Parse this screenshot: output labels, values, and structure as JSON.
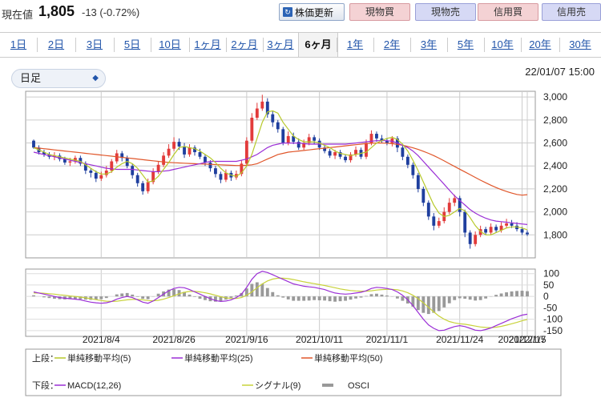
{
  "header": {
    "price_label": "現在値",
    "price_value": "1,805",
    "price_change": "-13 (-0.72%)",
    "update_button": "株価更新",
    "trade_buttons": [
      {
        "label": "現物買",
        "kind": "buy"
      },
      {
        "label": "現物売",
        "kind": "sell"
      },
      {
        "label": "信用買",
        "kind": "buy"
      },
      {
        "label": "信用売",
        "kind": "sell"
      }
    ]
  },
  "tabs": [
    "1日",
    "2日",
    "3日",
    "5日",
    "10日",
    "1ヶ月",
    "2ヶ月",
    "3ヶ月",
    "6ヶ月",
    "1年",
    "2年",
    "3年",
    "5年",
    "10年",
    "20年",
    "30年"
  ],
  "active_tab": "6ヶ月",
  "interval_select": "日足",
  "datetime": "22/01/07 15:00",
  "colors": {
    "up": "#e23b3b",
    "down": "#1f3f9e",
    "ma5": "#b7c92a",
    "ma25": "#9b2fd6",
    "ma50": "#e0562a",
    "macd": "#9b2fd6",
    "signal": "#c8d23a",
    "osci": "#999999"
  },
  "chart_data": [
    {
      "type": "candlestick",
      "y_ticks": [
        "3,000",
        "2,800",
        "2,600",
        "2,400",
        "2,200",
        "2,000",
        "1,800"
      ],
      "ylim": [
        1600,
        3050
      ],
      "x_tick_labels": [
        "2021/8/4",
        "2021/8/26",
        "2021/9/16",
        "2021/10/11",
        "2021/11/1",
        "2021/11/24",
        "2021/12/15",
        "2022/1/7"
      ],
      "candles": [
        [
          2620,
          2560,
          2630,
          2550
        ],
        [
          2560,
          2520,
          2580,
          2500
        ],
        [
          2520,
          2500,
          2540,
          2480
        ],
        [
          2500,
          2480,
          2520,
          2460
        ],
        [
          2480,
          2490,
          2520,
          2450
        ],
        [
          2490,
          2460,
          2510,
          2440
        ],
        [
          2460,
          2430,
          2480,
          2410
        ],
        [
          2430,
          2440,
          2470,
          2400
        ],
        [
          2440,
          2470,
          2490,
          2420
        ],
        [
          2470,
          2420,
          2490,
          2400
        ],
        [
          2420,
          2360,
          2440,
          2330
        ],
        [
          2360,
          2340,
          2380,
          2300
        ],
        [
          2340,
          2290,
          2360,
          2260
        ],
        [
          2290,
          2320,
          2350,
          2270
        ],
        [
          2320,
          2360,
          2400,
          2300
        ],
        [
          2360,
          2440,
          2460,
          2340
        ],
        [
          2440,
          2510,
          2540,
          2420
        ],
        [
          2510,
          2470,
          2530,
          2440
        ],
        [
          2470,
          2400,
          2490,
          2380
        ],
        [
          2400,
          2320,
          2420,
          2290
        ],
        [
          2320,
          2250,
          2340,
          2220
        ],
        [
          2250,
          2180,
          2270,
          2150
        ],
        [
          2180,
          2260,
          2290,
          2160
        ],
        [
          2260,
          2350,
          2380,
          2240
        ],
        [
          2350,
          2410,
          2440,
          2330
        ],
        [
          2410,
          2490,
          2520,
          2390
        ],
        [
          2490,
          2550,
          2590,
          2470
        ],
        [
          2550,
          2610,
          2650,
          2530
        ],
        [
          2610,
          2570,
          2640,
          2540
        ],
        [
          2570,
          2500,
          2600,
          2470
        ],
        [
          2500,
          2560,
          2590,
          2480
        ],
        [
          2560,
          2520,
          2580,
          2490
        ],
        [
          2520,
          2480,
          2550,
          2460
        ],
        [
          2480,
          2430,
          2500,
          2400
        ],
        [
          2430,
          2380,
          2450,
          2350
        ],
        [
          2380,
          2330,
          2400,
          2300
        ],
        [
          2330,
          2280,
          2350,
          2250
        ],
        [
          2280,
          2340,
          2370,
          2260
        ],
        [
          2340,
          2300,
          2360,
          2270
        ],
        [
          2300,
          2330,
          2360,
          2280
        ],
        [
          2330,
          2420,
          2450,
          2310
        ],
        [
          2420,
          2620,
          2650,
          2400
        ],
        [
          2620,
          2820,
          2860,
          2600
        ],
        [
          2820,
          2900,
          2950,
          2800
        ],
        [
          2900,
          2960,
          3020,
          2880
        ],
        [
          2960,
          2850,
          2990,
          2820
        ],
        [
          2850,
          2780,
          2880,
          2740
        ],
        [
          2780,
          2720,
          2800,
          2690
        ],
        [
          2720,
          2600,
          2740,
          2580
        ],
        [
          2600,
          2660,
          2700,
          2580
        ],
        [
          2660,
          2610,
          2690,
          2590
        ],
        [
          2610,
          2560,
          2640,
          2540
        ],
        [
          2560,
          2600,
          2630,
          2540
        ],
        [
          2600,
          2650,
          2680,
          2580
        ],
        [
          2650,
          2620,
          2670,
          2590
        ],
        [
          2620,
          2560,
          2640,
          2540
        ],
        [
          2560,
          2530,
          2580,
          2510
        ],
        [
          2530,
          2490,
          2550,
          2470
        ],
        [
          2490,
          2520,
          2540,
          2460
        ],
        [
          2520,
          2480,
          2540,
          2460
        ],
        [
          2480,
          2450,
          2500,
          2430
        ],
        [
          2450,
          2500,
          2520,
          2430
        ],
        [
          2500,
          2540,
          2570,
          2480
        ],
        [
          2540,
          2480,
          2560,
          2460
        ],
        [
          2480,
          2600,
          2630,
          2460
        ],
        [
          2600,
          2680,
          2710,
          2580
        ],
        [
          2680,
          2640,
          2700,
          2610
        ],
        [
          2640,
          2620,
          2670,
          2600
        ],
        [
          2620,
          2600,
          2640,
          2580
        ],
        [
          2600,
          2640,
          2660,
          2570
        ],
        [
          2640,
          2560,
          2660,
          2520
        ],
        [
          2560,
          2480,
          2580,
          2450
        ],
        [
          2480,
          2410,
          2500,
          2380
        ],
        [
          2410,
          2320,
          2430,
          2290
        ],
        [
          2320,
          2200,
          2340,
          2170
        ],
        [
          2200,
          2080,
          2220,
          2050
        ],
        [
          2080,
          1960,
          2100,
          1930
        ],
        [
          1960,
          1880,
          1990,
          1840
        ],
        [
          1880,
          1920,
          1950,
          1860
        ],
        [
          1920,
          2000,
          2040,
          1900
        ],
        [
          2000,
          2080,
          2120,
          1980
        ],
        [
          2080,
          2120,
          2150,
          2050
        ],
        [
          2120,
          2000,
          2140,
          1960
        ],
        [
          2000,
          1820,
          2020,
          1780
        ],
        [
          1820,
          1720,
          1840,
          1680
        ],
        [
          1720,
          1800,
          1830,
          1700
        ],
        [
          1800,
          1850,
          1880,
          1780
        ],
        [
          1850,
          1820,
          1870,
          1800
        ],
        [
          1820,
          1870,
          1900,
          1800
        ],
        [
          1870,
          1840,
          1890,
          1820
        ],
        [
          1840,
          1880,
          1910,
          1820
        ],
        [
          1880,
          1900,
          1940,
          1860
        ],
        [
          1900,
          1880,
          1930,
          1860
        ],
        [
          1880,
          1850,
          1910,
          1830
        ],
        [
          1850,
          1820,
          1870,
          1800
        ],
        [
          1820,
          1805,
          1840,
          1790
        ]
      ],
      "ma5": [
        2560,
        2540,
        2520,
        2500,
        2490,
        2480,
        2470,
        2460,
        2450,
        2440,
        2410,
        2380,
        2350,
        2330,
        2330,
        2350,
        2390,
        2420,
        2440,
        2420,
        2380,
        2320,
        2260,
        2270,
        2310,
        2370,
        2430,
        2500,
        2560,
        2570,
        2560,
        2550,
        2530,
        2500,
        2470,
        2430,
        2380,
        2340,
        2320,
        2310,
        2340,
        2400,
        2500,
        2640,
        2780,
        2870,
        2880,
        2860,
        2780,
        2720,
        2660,
        2630,
        2610,
        2610,
        2610,
        2600,
        2580,
        2560,
        2530,
        2510,
        2500,
        2490,
        2500,
        2510,
        2520,
        2560,
        2600,
        2620,
        2640,
        2650,
        2630,
        2590,
        2530,
        2450,
        2360,
        2260,
        2160,
        2060,
        1990,
        1960,
        1970,
        2000,
        2030,
        2010,
        1950,
        1880,
        1830,
        1800,
        1800,
        1820,
        1840,
        1860,
        1870,
        1870,
        1860,
        1845
      ],
      "ma25": [
        2520,
        2510,
        2500,
        2490,
        2480,
        2470,
        2460,
        2450,
        2440,
        2430,
        2420,
        2410,
        2400,
        2390,
        2380,
        2375,
        2370,
        2370,
        2370,
        2370,
        2365,
        2360,
        2355,
        2350,
        2350,
        2355,
        2360,
        2370,
        2380,
        2390,
        2400,
        2410,
        2420,
        2430,
        2440,
        2440,
        2440,
        2440,
        2440,
        2440,
        2450,
        2460,
        2480,
        2500,
        2530,
        2560,
        2580,
        2590,
        2600,
        2600,
        2600,
        2600,
        2595,
        2590,
        2590,
        2590,
        2590,
        2590,
        2590,
        2590,
        2590,
        2595,
        2600,
        2605,
        2610,
        2615,
        2620,
        2620,
        2620,
        2615,
        2600,
        2580,
        2560,
        2530,
        2490,
        2440,
        2390,
        2340,
        2290,
        2240,
        2190,
        2140,
        2100,
        2060,
        2020,
        1990,
        1965,
        1945,
        1930,
        1920,
        1915,
        1910,
        1905,
        1900,
        1895,
        1890
      ],
      "ma50": [
        2560,
        2555,
        2550,
        2545,
        2540,
        2535,
        2530,
        2525,
        2520,
        2515,
        2510,
        2505,
        2500,
        2495,
        2490,
        2485,
        2480,
        2475,
        2470,
        2465,
        2460,
        2455,
        2450,
        2445,
        2440,
        2435,
        2430,
        2428,
        2426,
        2424,
        2422,
        2420,
        2418,
        2416,
        2414,
        2412,
        2410,
        2408,
        2406,
        2404,
        2404,
        2406,
        2410,
        2420,
        2440,
        2460,
        2480,
        2500,
        2510,
        2520,
        2525,
        2530,
        2535,
        2540,
        2545,
        2550,
        2555,
        2560,
        2565,
        2570,
        2575,
        2580,
        2585,
        2590,
        2595,
        2598,
        2600,
        2600,
        2598,
        2594,
        2588,
        2580,
        2570,
        2558,
        2544,
        2528,
        2510,
        2490,
        2468,
        2444,
        2420,
        2396,
        2372,
        2348,
        2324,
        2300,
        2276,
        2254,
        2232,
        2212,
        2194,
        2178,
        2164,
        2152,
        2146,
        2150
      ],
      "macd": {
        "y_ticks": [
          "100",
          "50",
          "0",
          "-50",
          "-100",
          "-150"
        ],
        "ylim": [
          -175,
          120
        ],
        "macd": [
          20,
          15,
          10,
          5,
          0,
          -5,
          -8,
          -10,
          -12,
          -15,
          -20,
          -25,
          -28,
          -30,
          -28,
          -22,
          -12,
          -5,
          0,
          -5,
          -15,
          -25,
          -30,
          -20,
          -5,
          10,
          25,
          35,
          40,
          38,
          30,
          20,
          10,
          0,
          -10,
          -18,
          -22,
          -20,
          -15,
          -5,
          10,
          40,
          75,
          100,
          110,
          105,
          95,
          85,
          75,
          65,
          55,
          50,
          45,
          42,
          40,
          35,
          30,
          22,
          15,
          12,
          10,
          12,
          15,
          18,
          25,
          35,
          40,
          38,
          35,
          30,
          20,
          5,
          -15,
          -40,
          -70,
          -100,
          -125,
          -140,
          -150,
          -148,
          -140,
          -132,
          -128,
          -132,
          -140,
          -148,
          -150,
          -145,
          -138,
          -128,
          -118,
          -108,
          -98,
          -90,
          -82,
          -78
        ],
        "signal": [
          15,
          15,
          14,
          12,
          10,
          7,
          5,
          2,
          0,
          -3,
          -6,
          -10,
          -14,
          -18,
          -21,
          -22,
          -21,
          -18,
          -15,
          -13,
          -13,
          -15,
          -18,
          -19,
          -17,
          -12,
          -5,
          3,
          12,
          18,
          22,
          22,
          20,
          16,
          11,
          5,
          -1,
          -6,
          -9,
          -9,
          -5,
          5,
          20,
          38,
          55,
          68,
          76,
          80,
          80,
          78,
          74,
          69,
          64,
          60,
          56,
          52,
          48,
          43,
          38,
          33,
          29,
          26,
          24,
          23,
          23,
          25,
          28,
          30,
          31,
          31,
          29,
          24,
          16,
          5,
          -10,
          -28,
          -48,
          -68,
          -86,
          -100,
          -110,
          -116,
          -120,
          -122,
          -126,
          -130,
          -134,
          -136,
          -137,
          -135,
          -131,
          -126,
          -120,
          -114,
          -107,
          -101
        ],
        "osci": [
          5,
          0,
          -4,
          -7,
          -10,
          -12,
          -13,
          -12,
          -12,
          -12,
          -14,
          -15,
          -14,
          -12,
          -7,
          0,
          9,
          13,
          15,
          8,
          -2,
          -10,
          -12,
          -1,
          12,
          22,
          30,
          32,
          28,
          20,
          8,
          -2,
          -10,
          -16,
          -21,
          -23,
          -21,
          -14,
          -6,
          4,
          15,
          35,
          55,
          62,
          55,
          37,
          19,
          5,
          -5,
          -13,
          -19,
          -19,
          -19,
          -18,
          -16,
          -17,
          -18,
          -21,
          -23,
          -21,
          -19,
          -14,
          -9,
          -5,
          2,
          10,
          12,
          8,
          4,
          -1,
          -9,
          -19,
          -31,
          -45,
          -60,
          -72,
          -77,
          -72,
          -64,
          -48,
          -30,
          -16,
          -8,
          -10,
          -14,
          -18,
          -16,
          -9,
          -1,
          7,
          13,
          18,
          22,
          24,
          25,
          23
        ]
      }
    }
  ],
  "legend": {
    "upper_label": "上段：",
    "lower_label": "下段：",
    "upper_items": [
      "単純移動平均(5)",
      "単純移動平均(25)",
      "単純移動平均(50)"
    ],
    "lower_items": [
      "MACD(12,26)",
      "シグナル(9)",
      "OSCI"
    ]
  }
}
